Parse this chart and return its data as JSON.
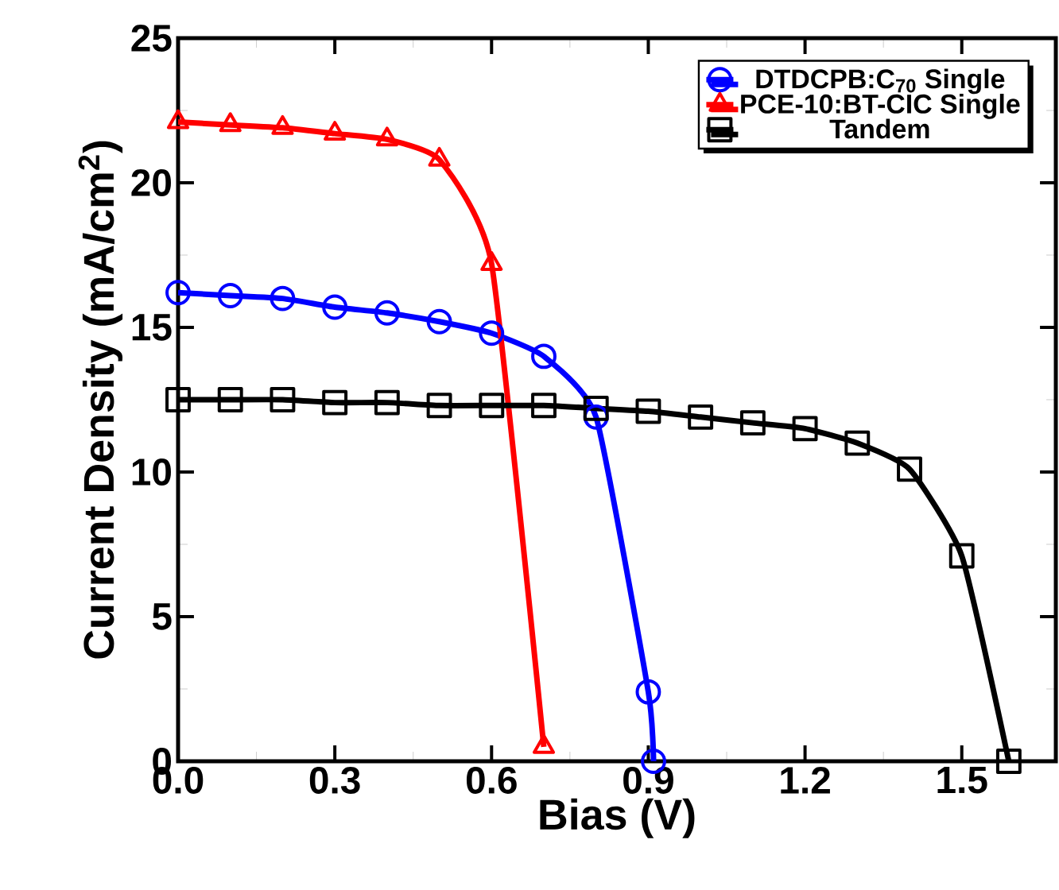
{
  "chart_data": {
    "type": "line",
    "xlabel": "Bias (V)",
    "ylabel": "Current Density (mA/cm$^{2}$)",
    "xlim": [
      0,
      1.68
    ],
    "ylim": [
      0,
      25
    ],
    "xticks": [
      {
        "value": 0,
        "label": "0.0"
      },
      0.3,
      0.6,
      0.9,
      1.2,
      1.5
    ],
    "yticks": [
      0,
      5,
      10,
      15,
      20,
      25
    ],
    "legend": "top right",
    "grid": false,
    "line_style": "solid",
    "series": [
      {
        "name": "DTDCPB:C$_{70}$ Single",
        "color": "#0000ff",
        "marker": "circle",
        "x": [
          0,
          0.1,
          0.2,
          0.3,
          0.4,
          0.5,
          0.6,
          0.7,
          0.8,
          0.9,
          0.91
        ],
        "values": [
          16.2,
          16.1,
          16.0,
          15.7,
          15.5,
          15.2,
          14.8,
          14.0,
          11.9,
          2.4,
          0
        ]
      },
      {
        "name": "PCE-10:BT-CIC Single",
        "color": "#ff0000",
        "marker": "triangle",
        "x": [
          0,
          0.1,
          0.2,
          0.3,
          0.4,
          0.5,
          0.6,
          0.7
        ],
        "values": [
          22.1,
          22.0,
          21.9,
          21.7,
          21.5,
          20.8,
          17.2,
          0.5
        ]
      },
      {
        "name": "Tandem",
        "color": "#000000",
        "marker": "square",
        "x": [
          0,
          0.1,
          0.2,
          0.3,
          0.4,
          0.5,
          0.6,
          0.7,
          0.8,
          0.9,
          1.0,
          1.1,
          1.2,
          1.3,
          1.4,
          1.5,
          1.59
        ],
        "values": [
          12.5,
          12.5,
          12.5,
          12.4,
          12.4,
          12.3,
          12.3,
          12.3,
          12.2,
          12.1,
          11.9,
          11.7,
          11.5,
          11.0,
          10.1,
          7.1,
          0
        ]
      }
    ]
  }
}
